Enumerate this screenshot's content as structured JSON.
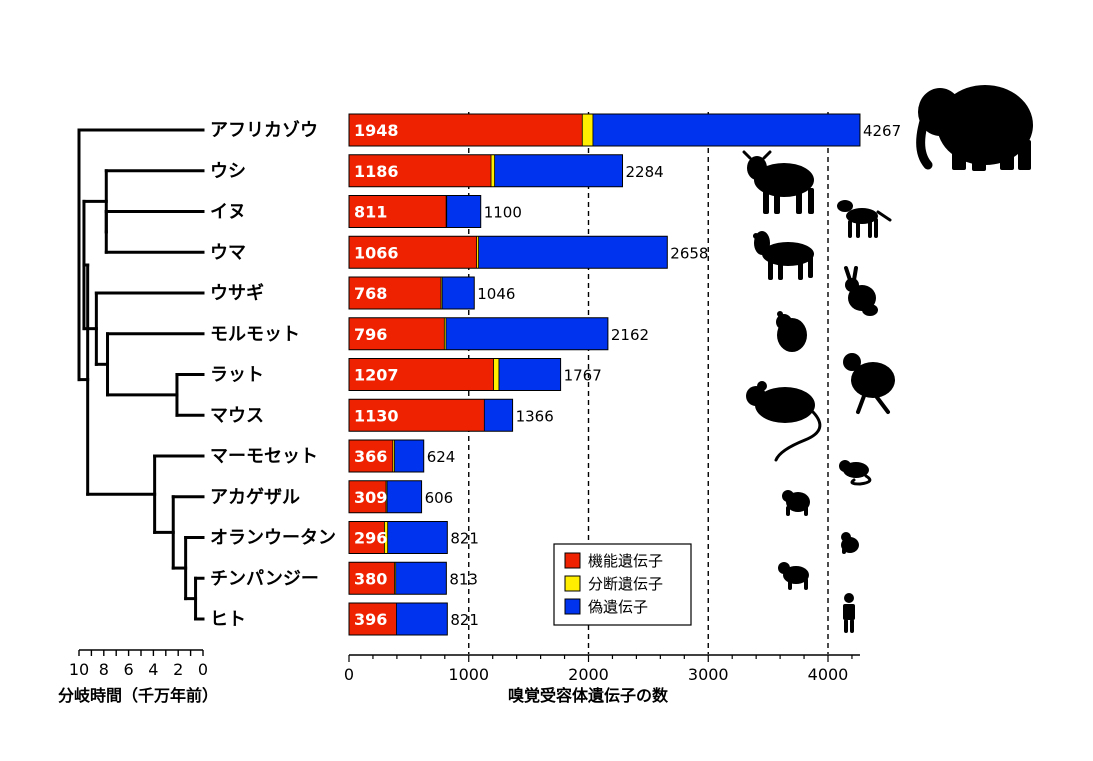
{
  "chart_data": {
    "type": "bar",
    "stacked": true,
    "orientation": "horizontal",
    "categories": [
      "アフリカゾウ",
      "ウシ",
      "イヌ",
      "ウマ",
      "ウサギ",
      "モルモット",
      "ラット",
      "マウス",
      "マーモセット",
      "アカゲザル",
      "オランウータン",
      "チンパンジー",
      "ヒト"
    ],
    "totals": [
      4267,
      2284,
      1100,
      2658,
      1046,
      2162,
      1767,
      1366,
      624,
      606,
      821,
      813,
      821
    ],
    "series": [
      {
        "name": "機能遺伝子",
        "color": "#ee2200",
        "values": [
          1948,
          1186,
          811,
          1066,
          768,
          796,
          1207,
          1130,
          366,
          309,
          296,
          380,
          396
        ]
      },
      {
        "name": "分断遺伝子",
        "color": "#ffee00",
        "values": [
          89,
          30,
          5,
          16,
          10,
          14,
          45,
          0,
          14,
          9,
          27,
          10,
          0
        ]
      },
      {
        "name": "偽遺伝子",
        "color": "#0033ee",
        "values": [
          2230,
          1068,
          284,
          1576,
          268,
          1352,
          515,
          236,
          244,
          288,
          498,
          423,
          425
        ]
      }
    ],
    "xlabel": "嗅覚受容体遺伝子の数",
    "xlim": [
      0,
      4267
    ],
    "xticks": [
      0,
      1000,
      2000,
      3000,
      4000
    ],
    "dashed_gridlines": [
      1000,
      2000,
      3000,
      4000
    ],
    "legend_position": "lower-right",
    "tree_axis": {
      "label": "分岐時間（千万年前）",
      "ticks": [
        10,
        8,
        6,
        4,
        2,
        0
      ]
    },
    "colors": {
      "functional": "#ee2200",
      "fragmented": "#ffee00",
      "pseudo": "#0033ee"
    }
  }
}
